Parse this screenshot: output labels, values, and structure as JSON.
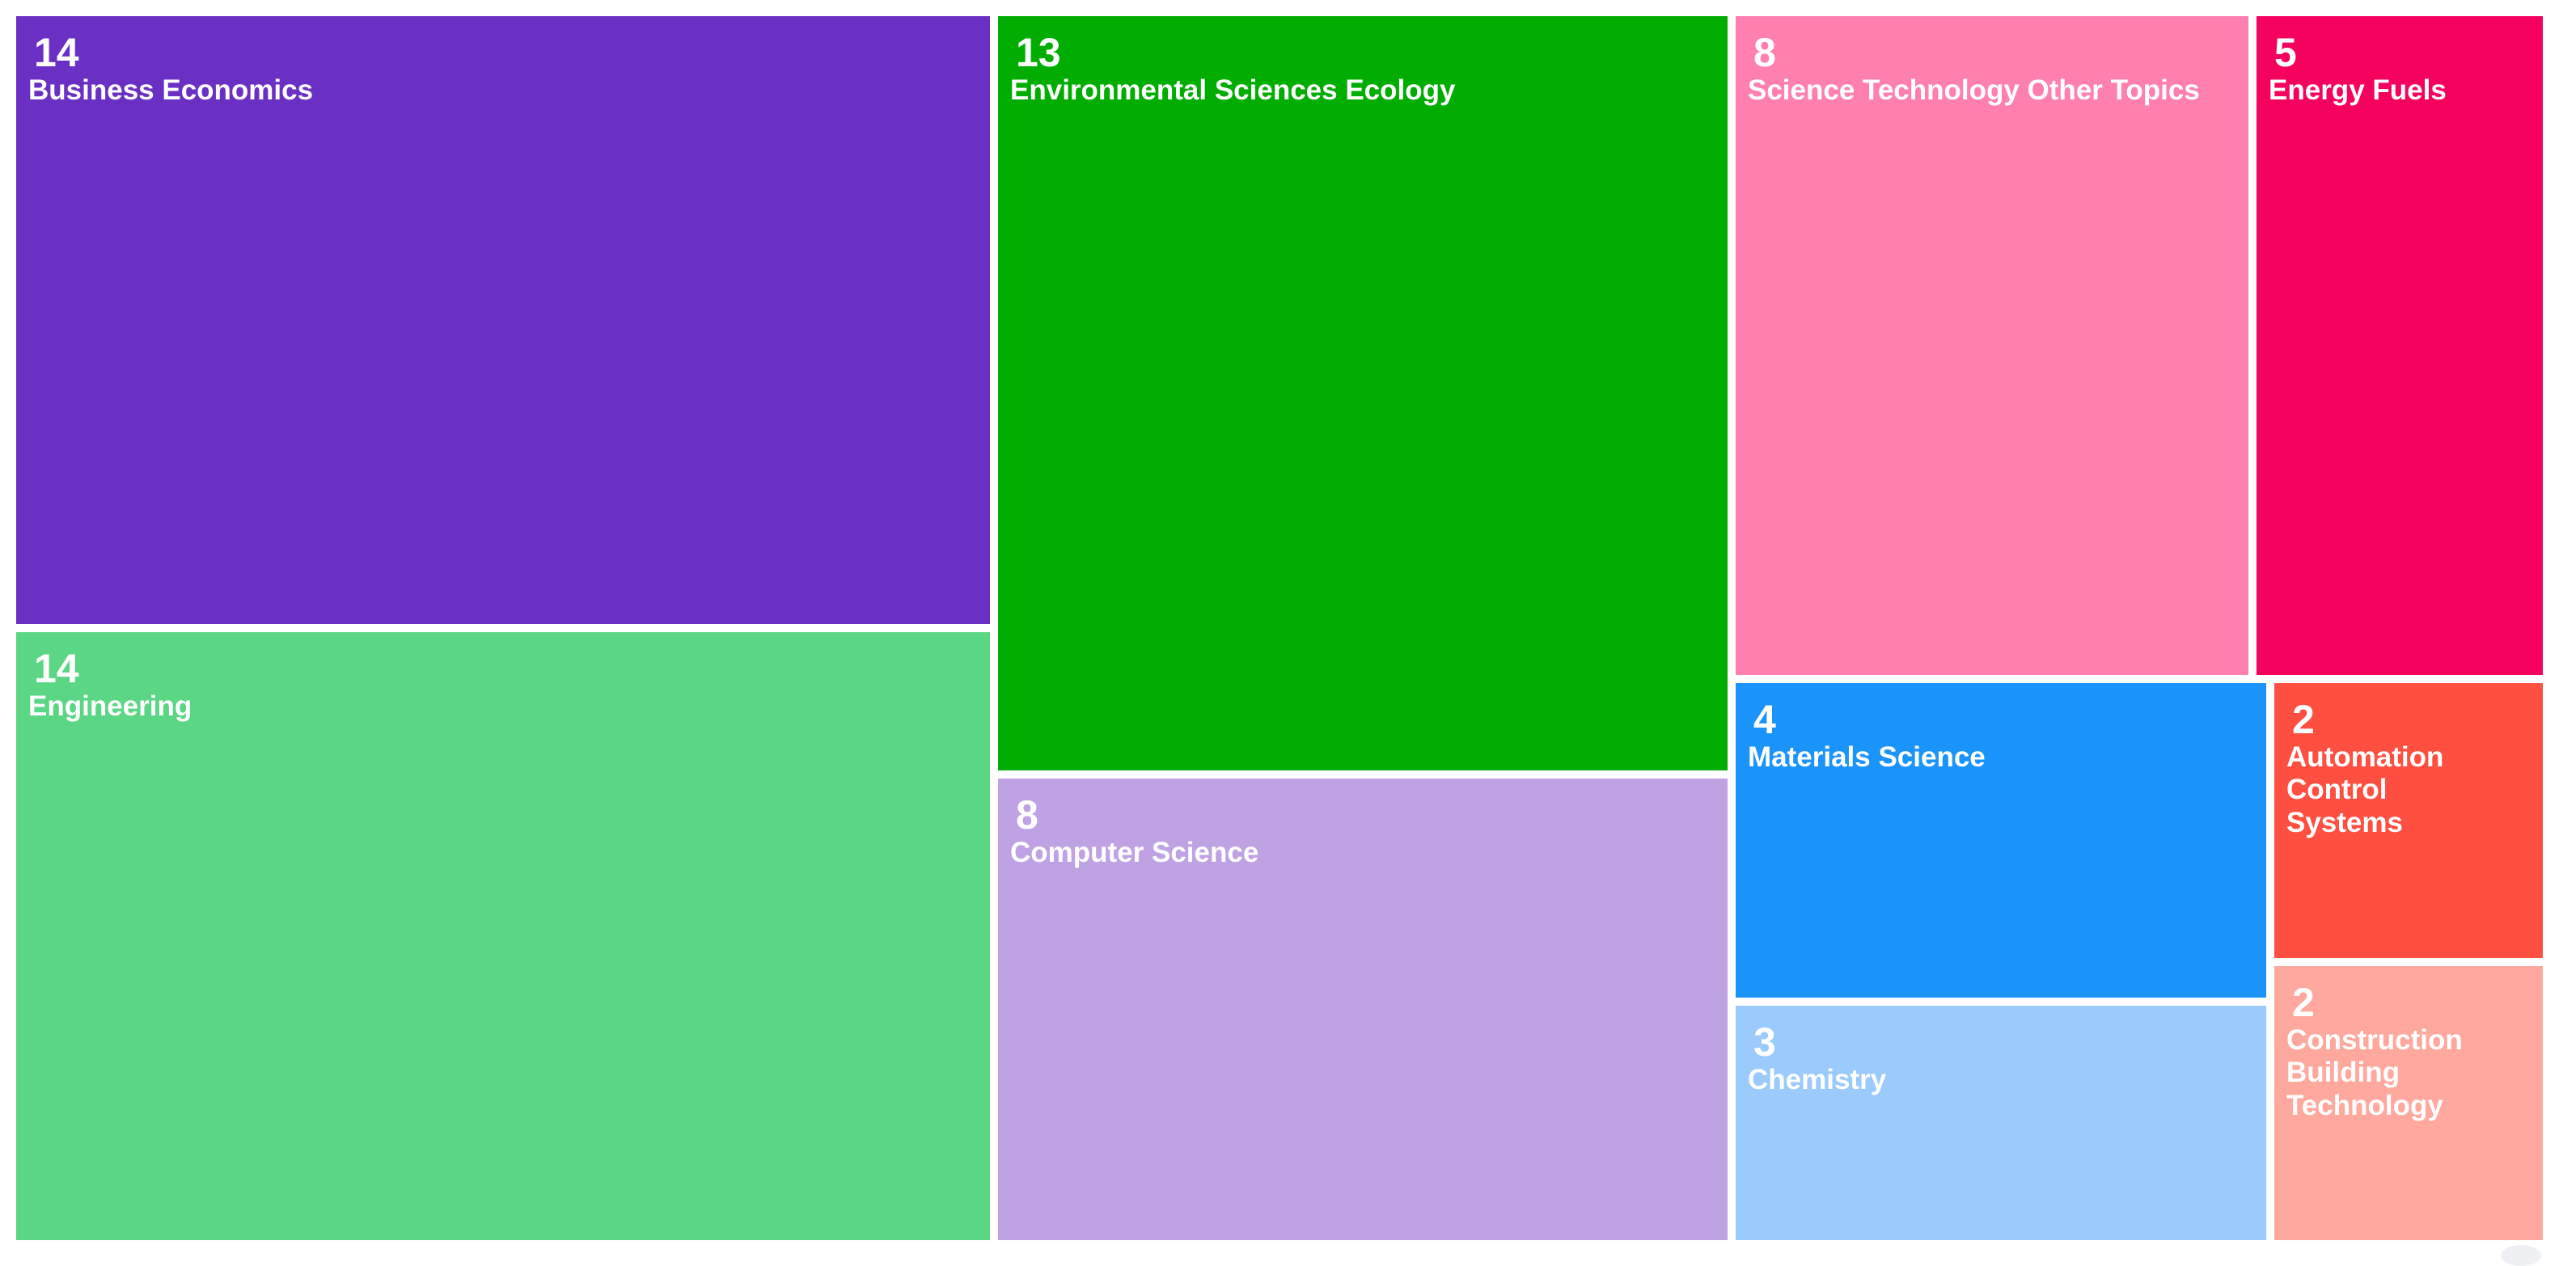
{
  "chart_data": {
    "type": "treemap",
    "title": "",
    "items": [
      {
        "name": "Business Economics",
        "value": 14,
        "color": "#6A30C4"
      },
      {
        "name": "Engineering",
        "value": 14,
        "color": "#5AD684"
      },
      {
        "name": "Environmental Sciences Ecology",
        "value": 13,
        "color": "#00AD00"
      },
      {
        "name": "Computer Science",
        "value": 8,
        "color": "#BFA2E4"
      },
      {
        "name": "Science Technology Other Topics",
        "value": 8,
        "color": "#FF80AE"
      },
      {
        "name": "Energy Fuels",
        "value": 5,
        "color": "#F5025E"
      },
      {
        "name": "Materials Science",
        "value": 4,
        "color": "#1A94FA"
      },
      {
        "name": "Chemistry",
        "value": 3,
        "color": "#9BCAFC"
      },
      {
        "name": "Automation Control Systems",
        "value": 2,
        "color": "#FF4F40"
      },
      {
        "name": "Construction Building Technology",
        "value": 2,
        "color": "#FFA89E"
      }
    ]
  }
}
